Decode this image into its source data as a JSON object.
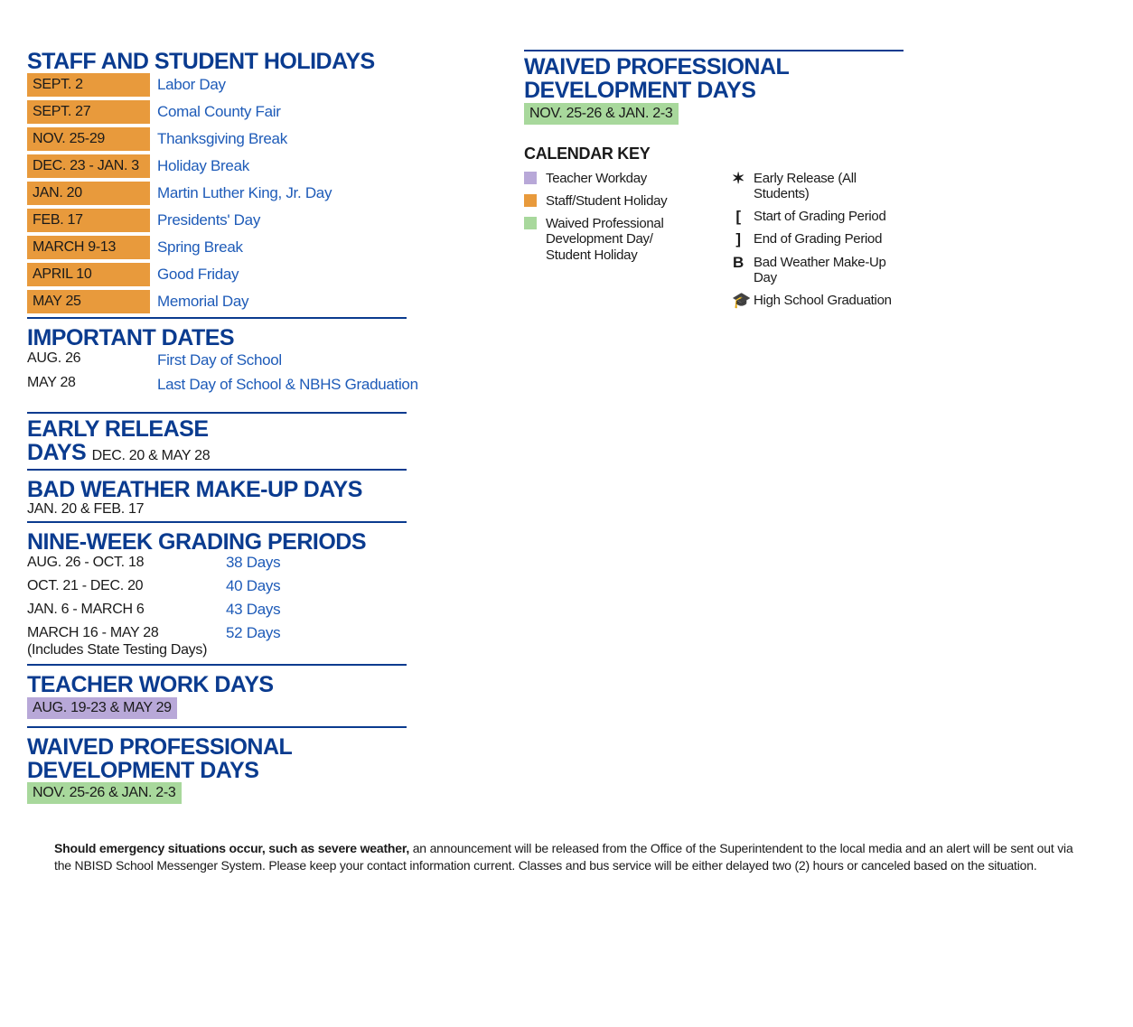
{
  "colors": {
    "heading_blue": "#0a3b8f",
    "link_blue": "#1e5bb8",
    "holiday_orange": "#e89a3c",
    "teacher_purple": "#b8a8d8",
    "waived_green": "#a8d89c",
    "text_dark": "#1a1a1a",
    "background": "#ffffff"
  },
  "typography": {
    "heading_family": "Impact, Arial Black",
    "body_family": "Helvetica Neue",
    "heading_size_pt": 25,
    "body_size_pt": 16
  },
  "left": {
    "holidays": {
      "title": "STAFF AND STUDENT HOLIDAYS",
      "rows": [
        {
          "date": "SEPT. 2",
          "label": "Labor Day"
        },
        {
          "date": "SEPT. 27",
          "label": "Comal County Fair"
        },
        {
          "date": "NOV. 25-29",
          "label": "Thanksgiving Break"
        },
        {
          "date": "DEC. 23 - JAN. 3",
          "label": "Holiday Break"
        },
        {
          "date": "JAN. 20",
          "label": "Martin Luther King, Jr. Day"
        },
        {
          "date": "FEB. 17",
          "label": "Presidents' Day"
        },
        {
          "date": "MARCH 9-13",
          "label": "Spring Break"
        },
        {
          "date": "APRIL 10",
          "label": "Good Friday"
        },
        {
          "date": "MAY 25",
          "label": "Memorial Day"
        }
      ]
    },
    "important": {
      "title": "IMPORTANT DATES",
      "rows": [
        {
          "date": "AUG. 26",
          "label": "First Day of School"
        },
        {
          "date": "MAY 28",
          "label": "Last Day of School & NBHS Graduation"
        }
      ]
    },
    "early_release": {
      "title_line1": "EARLY RELEASE",
      "title_line2": "DAYS",
      "dates": "DEC. 20 & MAY 28"
    },
    "bad_weather": {
      "title": "BAD WEATHER MAKE-UP DAYS",
      "dates": "JAN. 20 & FEB. 17"
    },
    "grading": {
      "title": "NINE-WEEK GRADING PERIODS",
      "rows": [
        {
          "period": "AUG. 26 - OCT. 18",
          "days": "38 Days"
        },
        {
          "period": "OCT. 21 - DEC. 20",
          "days": "40 Days"
        },
        {
          "period": "JAN. 6 - MARCH 6",
          "days": "43 Days"
        },
        {
          "period": "MARCH 16 - MAY 28\n(Includes State Testing Days)",
          "days": "52 Days"
        }
      ]
    },
    "teacher_work": {
      "title": "TEACHER WORK DAYS",
      "dates": "AUG. 19-23 & MAY 29"
    },
    "waived_left": {
      "title_line1": "WAIVED PROFESSIONAL",
      "title_line2": "DEVELOPMENT DAYS",
      "dates": "NOV. 25-26 & JAN. 2-3"
    }
  },
  "right": {
    "waived": {
      "title_line1": "WAIVED PROFESSIONAL",
      "title_line2": "DEVELOPMENT DAYS",
      "dates": "NOV. 25-26 & JAN. 2-3"
    },
    "key": {
      "title": "CALENDAR KEY",
      "left_items": [
        {
          "type": "swatch",
          "color": "#b8a8d8",
          "label": "Teacher Workday"
        },
        {
          "type": "swatch",
          "color": "#e89a3c",
          "label": "Staff/Student Holiday"
        },
        {
          "type": "swatch",
          "color": "#a8d89c",
          "label": "Waived Professional Development Day/ Student Holiday"
        }
      ],
      "right_items": [
        {
          "type": "symbol",
          "symbol": "✶",
          "label": "Early Release (All Students)"
        },
        {
          "type": "symbol",
          "symbol": "[",
          "label": "Start of Grading Period"
        },
        {
          "type": "symbol",
          "symbol": "]",
          "label": "End of Grading Period"
        },
        {
          "type": "symbol",
          "symbol": "B",
          "label": "Bad Weather Make-Up Day"
        },
        {
          "type": "symbol",
          "symbol": "🎓",
          "label": "High School Graduation"
        }
      ]
    }
  },
  "footer": {
    "bold": "Should emergency situations occur, such as severe weather,",
    "rest": " an announcement will be released from the Office of the Superintendent to the local media and an alert will be sent out via the NBISD School Messenger System. Please keep your contact information current. Classes and bus service will be either delayed two (2) hours or canceled based on the situation."
  }
}
